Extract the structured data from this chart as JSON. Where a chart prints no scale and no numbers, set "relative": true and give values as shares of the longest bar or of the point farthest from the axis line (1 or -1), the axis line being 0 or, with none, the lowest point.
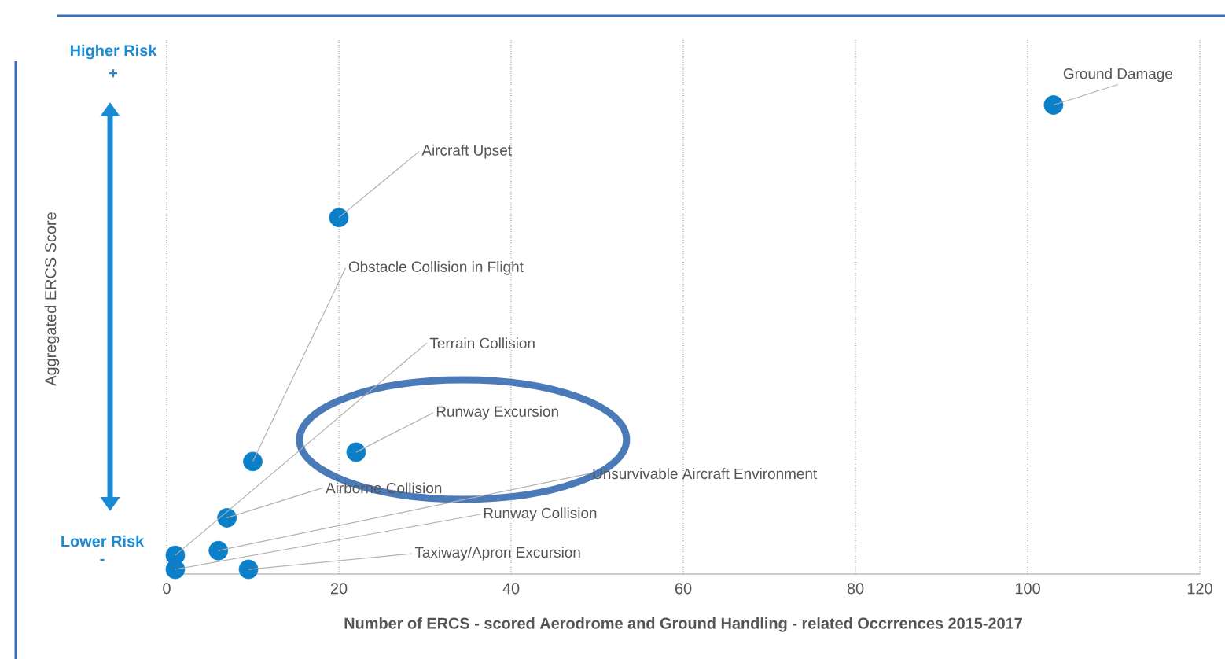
{
  "chart_data": {
    "type": "scatter",
    "xlabel": "Number of ERCS - scored Aerodrome and Ground Handling - related Occrrences 2015-2017",
    "x": [
      103,
      20,
      10,
      1,
      22,
      7,
      6,
      1,
      9.5
    ],
    "values": [
      1,
      0.76,
      0.24,
      0.04,
      0.26,
      0.12,
      0.05,
      0.01,
      0.01
    ],
    "color": "#0b7fc7",
    "relative": true,
    "grid": "x",
    "xlim": [
      0,
      120
    ],
    "xticks": [
      0,
      20,
      40,
      60,
      80,
      100,
      120
    ],
    "annotations": [
      {
        "text": "Ground Damage",
        "x": 103,
        "y": 1
      },
      {
        "text": "Aircraft Upset",
        "x": 20,
        "y": 0.76
      },
      {
        "text": "Obstacle Collision in Flight",
        "x": 10,
        "y": 0.24
      },
      {
        "text": "Terrain Collision",
        "x": 1,
        "y": 0.04
      },
      {
        "text": "Runway Excursion",
        "x": 22,
        "y": 0.26
      },
      {
        "text": "Airborne Collision",
        "x": 7,
        "y": 0.12
      },
      {
        "text": "Unsurvivable Aircraft Environment",
        "x": 6,
        "y": 0.05
      },
      {
        "text": "Runway Collision",
        "x": 1,
        "y": 0.01
      },
      {
        "text": "Taxiway/Apron Excursion",
        "x": 9.5,
        "y": 0.01
      },
      "Higher Risk",
      "+",
      "Lower Risk",
      "-",
      "Aggregated ERCS Score"
    ]
  }
}
